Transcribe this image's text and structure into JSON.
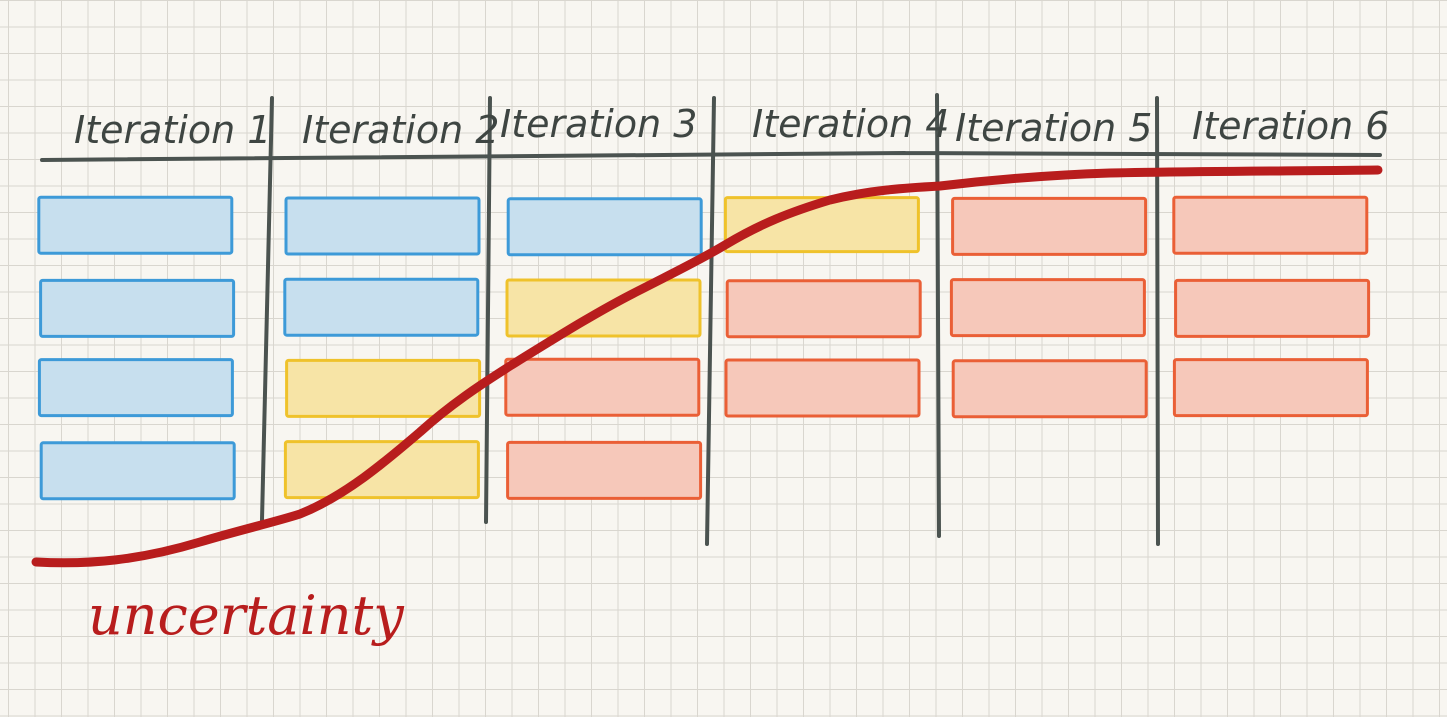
{
  "iterations": [
    {
      "label": "Iteration 1",
      "cards": [
        "blue",
        "blue",
        "blue",
        "blue"
      ]
    },
    {
      "label": "Iteration 2",
      "cards": [
        "blue",
        "blue",
        "yellow",
        "yellow"
      ]
    },
    {
      "label": "Iteration 3",
      "cards": [
        "blue",
        "yellow",
        "red",
        "red"
      ]
    },
    {
      "label": "Iteration 4",
      "cards": [
        "yellow",
        "red",
        "red"
      ]
    },
    {
      "label": "Iteration 5",
      "cards": [
        "red",
        "red",
        "red"
      ]
    },
    {
      "label": "Iteration 6",
      "cards": [
        "red",
        "red",
        "red"
      ]
    }
  ],
  "curve_label": "uncertainty",
  "colors": {
    "blue": "#3d9ad8",
    "yellow": "#efc22b",
    "red": "#ea5f36",
    "curve": "#b81d1d",
    "lines": "#4b5350"
  }
}
